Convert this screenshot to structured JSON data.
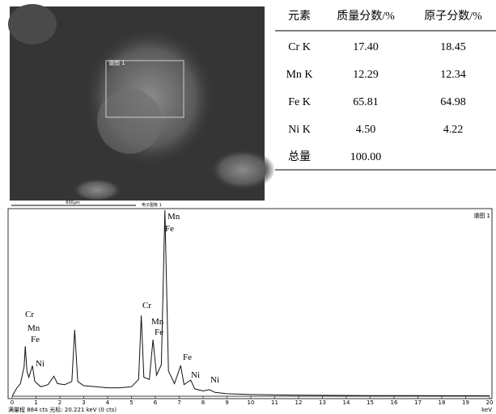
{
  "sem_image": {
    "region_label": "谱图 1",
    "scale_label": "600μm",
    "image_label": "电子图像 1"
  },
  "table": {
    "header": [
      "元素",
      "质量分数/%",
      "原子分数/%"
    ],
    "rows": [
      [
        "Cr K",
        "17.40",
        "18.45"
      ],
      [
        "Mn K",
        "12.29",
        "12.34"
      ],
      [
        "Fe K",
        "65.81",
        "64.98"
      ],
      [
        "Ni K",
        "4.50",
        "4.22"
      ],
      [
        "总量",
        "100.00"
      ]
    ]
  },
  "chart_data": {
    "type": "line",
    "title": "谱图 1",
    "x_label": "keV",
    "footer": "满量程 884 cts  光标: 20.221 keV (0 cts)",
    "color": "#111111",
    "xlim": [
      0,
      20
    ],
    "xticks": [
      0,
      1,
      2,
      3,
      4,
      5,
      6,
      7,
      8,
      9,
      10,
      11,
      12,
      13,
      14,
      15,
      16,
      17,
      18,
      19,
      20
    ],
    "ylim": [
      0,
      884
    ],
    "x": [
      0,
      0.2,
      0.35,
      0.5,
      0.55,
      0.62,
      0.7,
      0.85,
      0.95,
      1.2,
      1.5,
      1.75,
      1.9,
      2.2,
      2.5,
      2.62,
      2.75,
      3,
      3.5,
      4,
      4.5,
      5,
      5.3,
      5.41,
      5.52,
      5.75,
      5.9,
      6.05,
      6.25,
      6.4,
      6.55,
      6.8,
      7.06,
      7.2,
      7.48,
      7.65,
      8,
      8.26,
      8.5,
      9,
      10,
      12,
      15,
      20
    ],
    "values": [
      0,
      40,
      60,
      140,
      238,
      120,
      90,
      145,
      70,
      45,
      55,
      95,
      60,
      55,
      70,
      315,
      70,
      50,
      45,
      40,
      40,
      45,
      80,
      384,
      90,
      80,
      269,
      100,
      150,
      884,
      120,
      60,
      146,
      55,
      77,
      35,
      25,
      31,
      18,
      12,
      8,
      5,
      3,
      2
    ],
    "annotations": [
      "Cr",
      "Mn",
      "Fe",
      "Ni",
      "Cr",
      "Mn",
      "Fe",
      "Mn",
      "Fe",
      "Fe",
      "Ni",
      "Ni"
    ]
  }
}
